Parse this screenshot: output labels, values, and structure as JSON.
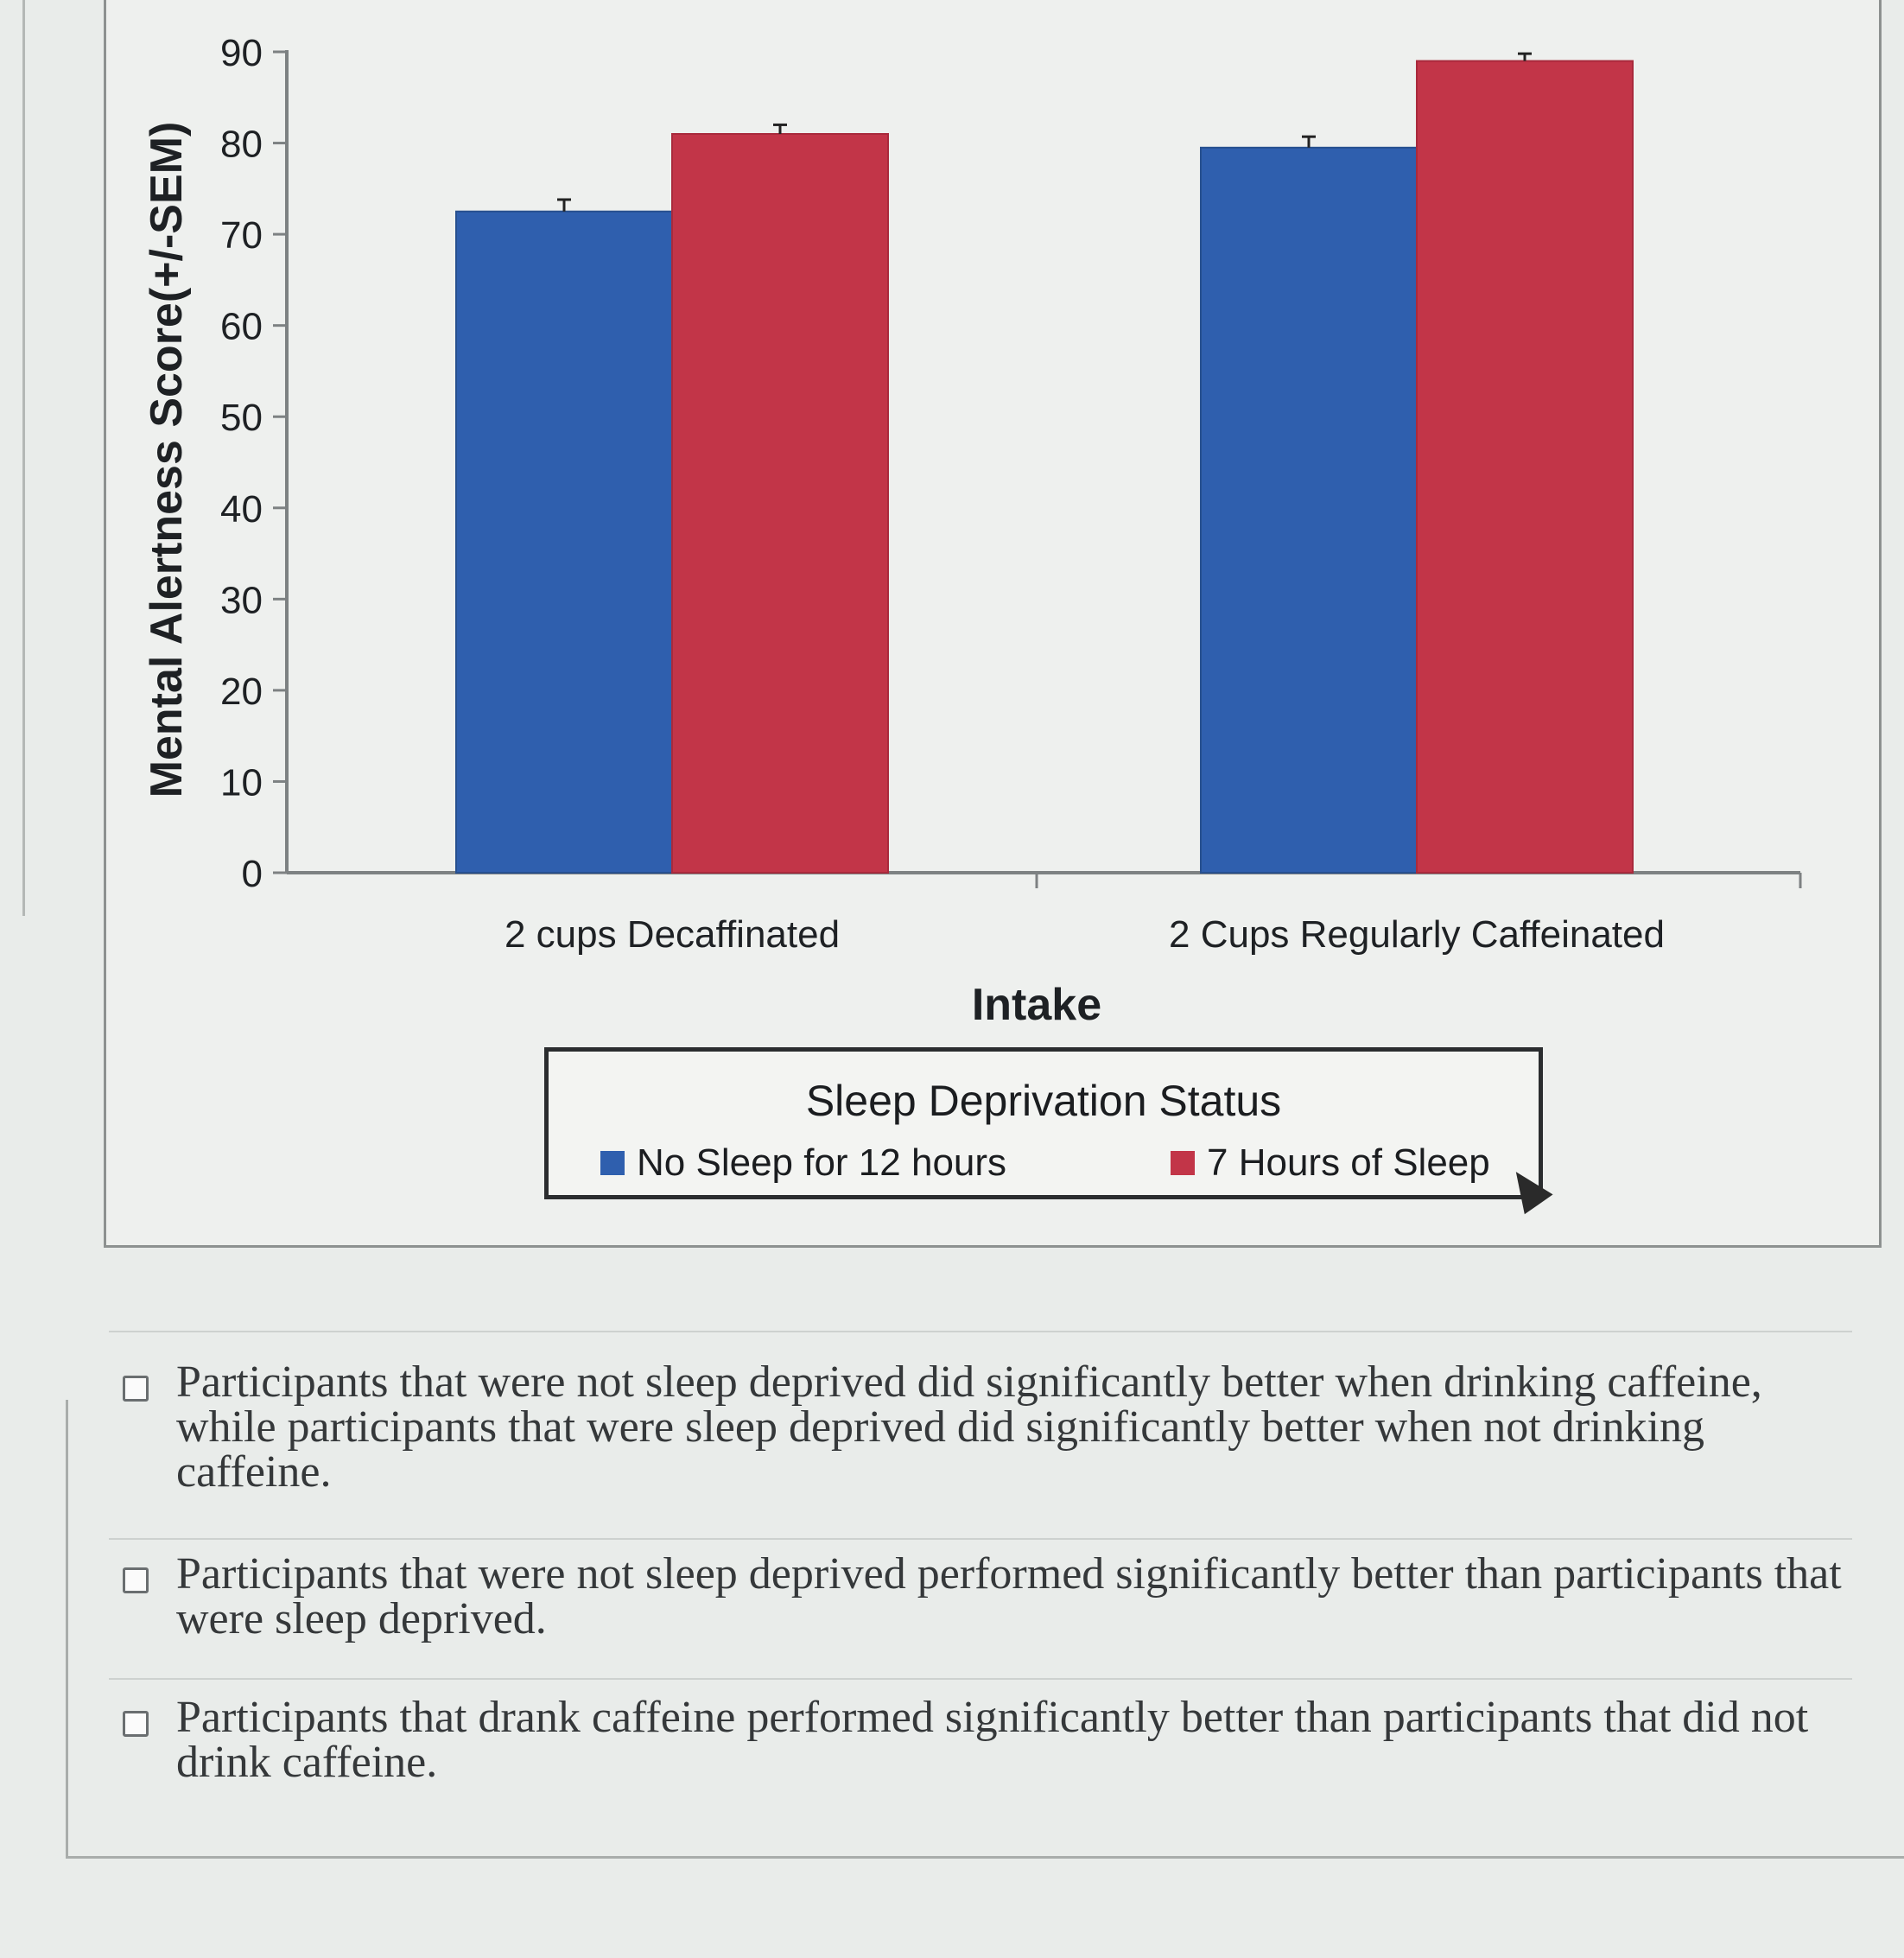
{
  "chart_data": {
    "type": "bar",
    "title": "",
    "xlabel": "Intake",
    "ylabel": "Mental Alertness Score(+/-SEM)",
    "ylim": [
      0,
      90
    ],
    "yticks": [
      "0",
      "10",
      "20",
      "30",
      "40",
      "50",
      "60",
      "70",
      "80",
      "90"
    ],
    "categories": [
      "2 cups Decaffinated",
      "2 Cups Regularly Caffeinated"
    ],
    "series": [
      {
        "name": "No Sleep for 12 hours",
        "values": [
          72.5,
          79.5
        ],
        "errors": [
          1.3,
          1.2
        ],
        "color": "#2f5fae"
      },
      {
        "name": "7 Hours of Sleep",
        "values": [
          81,
          89
        ],
        "errors": [
          1.0,
          0.8
        ],
        "color": "#c23548"
      }
    ],
    "legend": {
      "title": "Sleep Deprivation Status",
      "position": "bottom"
    },
    "grid": false
  },
  "options": [
    {
      "text": "Participants that were not sleep deprived did significantly better when drinking caffeine, while participants that were sleep deprived did significantly better when not drinking caffeine."
    },
    {
      "text": "Participants that were not sleep deprived performed significantly better than participants that were sleep deprived."
    },
    {
      "text": "Participants that drank caffeine performed significantly better than participants that did not drink caffeine."
    }
  ]
}
